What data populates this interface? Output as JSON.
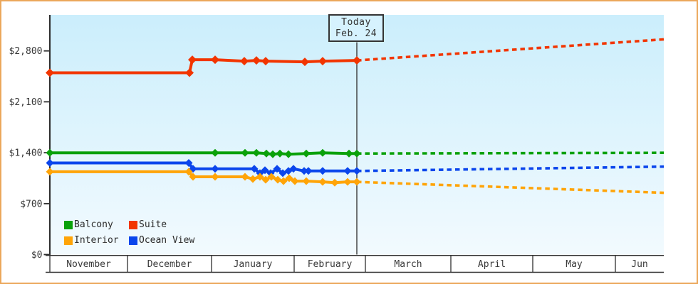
{
  "colors": {
    "frame_border": "#EBA75B",
    "plot_bg_top": "#CBEEFC",
    "plot_bg_bottom": "#F2FAFE",
    "axis": "#2E2E2E",
    "text": "#383838",
    "today_line": "#3A3A3A",
    "today_box_bg": "#D6F2FE",
    "today_box_border": "#333333"
  },
  "chart_data": {
    "type": "line",
    "description": "Cruise cabin price history with dashed price forecast after today",
    "today_label": [
      "Today",
      "Feb. 24"
    ],
    "y_axis": {
      "ticks": [
        {
          "label": "$0",
          "value": 0
        },
        {
          "label": "$700",
          "value": 700
        },
        {
          "label": "$1,400",
          "value": 1400
        },
        {
          "label": "$2,100",
          "value": 2100
        },
        {
          "label": "$2,800",
          "value": 2800
        }
      ],
      "range": [
        0,
        3290
      ],
      "grid": false
    },
    "x_axis": {
      "months": [
        "November",
        "December",
        "January",
        "February",
        "March",
        "April",
        "May",
        "Jun"
      ]
    },
    "legend_items": [
      {
        "label": "Balcony",
        "color": "#0AA10A"
      },
      {
        "label": "Suite",
        "color": "#F23500"
      },
      {
        "label": "Interior",
        "color": "#FFA408"
      },
      {
        "label": "Ocean View",
        "color": "#0B46EC"
      }
    ],
    "series": [
      {
        "name": "Suite",
        "color": "#F23500",
        "history": [
          {
            "date": "Nov 1",
            "value": 2499,
            "x": 70
          },
          {
            "date": "Dec 23",
            "value": 2499,
            "x": 266
          },
          {
            "date": "Dec 24",
            "value": 2679,
            "x": 270
          },
          {
            "date": "Jan 2",
            "value": 2679,
            "x": 302
          },
          {
            "date": "Jan 13",
            "value": 2659,
            "x": 343
          },
          {
            "date": "Jan 17",
            "value": 2669,
            "x": 360
          },
          {
            "date": "Jan 21",
            "value": 2659,
            "x": 373
          },
          {
            "date": "Feb 4",
            "value": 2649,
            "x": 428
          },
          {
            "date": "Feb 11",
            "value": 2659,
            "x": 453
          },
          {
            "date": "Feb 24",
            "value": 2669,
            "x": 501
          }
        ],
        "forecast": [
          {
            "date": "Jun 19",
            "value": 2959,
            "x": 932
          }
        ]
      },
      {
        "name": "Balcony",
        "color": "#0AA10A",
        "history": [
          {
            "date": "Nov 1",
            "value": 1399,
            "x": 70
          },
          {
            "date": "Jan 2",
            "value": 1399,
            "x": 302
          },
          {
            "date": "Jan 13",
            "value": 1399,
            "x": 344
          },
          {
            "date": "Jan 17",
            "value": 1399,
            "x": 360
          },
          {
            "date": "Jan 21",
            "value": 1389,
            "x": 374
          },
          {
            "date": "Jan 24",
            "value": 1379,
            "x": 383
          },
          {
            "date": "Jan 26",
            "value": 1389,
            "x": 393
          },
          {
            "date": "Jan 30",
            "value": 1379,
            "x": 405
          },
          {
            "date": "Feb 5",
            "value": 1389,
            "x": 430
          },
          {
            "date": "Feb 11",
            "value": 1399,
            "x": 453
          },
          {
            "date": "Feb 21",
            "value": 1389,
            "x": 490
          },
          {
            "date": "Feb 24",
            "value": 1389,
            "x": 501
          }
        ],
        "forecast": [
          {
            "date": "Jun 19",
            "value": 1399,
            "x": 932
          }
        ]
      },
      {
        "name": "Ocean View",
        "color": "#0B46EC",
        "history": [
          {
            "date": "Nov 1",
            "value": 1259,
            "x": 70
          },
          {
            "date": "Dec 23",
            "value": 1259,
            "x": 265
          },
          {
            "date": "Dec 24",
            "value": 1179,
            "x": 271
          },
          {
            "date": "Jan 2",
            "value": 1179,
            "x": 302
          },
          {
            "date": "Jan 16",
            "value": 1179,
            "x": 357
          },
          {
            "date": "Jan 19",
            "value": 1119,
            "x": 365
          },
          {
            "date": "Jan 20",
            "value": 1159,
            "x": 372
          },
          {
            "date": "Jan 23",
            "value": 1119,
            "x": 380
          },
          {
            "date": "Jan 25",
            "value": 1179,
            "x": 389
          },
          {
            "date": "Jan 27",
            "value": 1119,
            "x": 397
          },
          {
            "date": "Jan 30",
            "value": 1149,
            "x": 405
          },
          {
            "date": "Feb 1",
            "value": 1179,
            "x": 412
          },
          {
            "date": "Feb 4",
            "value": 1149,
            "x": 427
          },
          {
            "date": "Feb 6",
            "value": 1149,
            "x": 433
          },
          {
            "date": "Feb 11",
            "value": 1149,
            "x": 453
          },
          {
            "date": "Feb 20",
            "value": 1149,
            "x": 488
          },
          {
            "date": "Feb 24",
            "value": 1149,
            "x": 501
          }
        ],
        "forecast": [
          {
            "date": "Jun 19",
            "value": 1209,
            "x": 932
          }
        ]
      },
      {
        "name": "Interior",
        "color": "#FFA408",
        "history": [
          {
            "date": "Nov 1",
            "value": 1139,
            "x": 70
          },
          {
            "date": "Dec 23",
            "value": 1139,
            "x": 265
          },
          {
            "date": "Dec 24",
            "value": 1069,
            "x": 271
          },
          {
            "date": "Jan 2",
            "value": 1069,
            "x": 302
          },
          {
            "date": "Jan 13",
            "value": 1069,
            "x": 344
          },
          {
            "date": "Jan 16",
            "value": 1039,
            "x": 355
          },
          {
            "date": "Jan 19",
            "value": 1069,
            "x": 365
          },
          {
            "date": "Jan 21",
            "value": 1029,
            "x": 373
          },
          {
            "date": "Jan 23",
            "value": 1069,
            "x": 381
          },
          {
            "date": "Jan 25",
            "value": 1029,
            "x": 390
          },
          {
            "date": "Jan 27",
            "value": 1009,
            "x": 398
          },
          {
            "date": "Jan 30",
            "value": 1049,
            "x": 406
          },
          {
            "date": "Feb 1",
            "value": 1009,
            "x": 414
          },
          {
            "date": "Feb 5",
            "value": 1009,
            "x": 430
          },
          {
            "date": "Feb 11",
            "value": 999,
            "x": 453
          },
          {
            "date": "Feb 16",
            "value": 989,
            "x": 470
          },
          {
            "date": "Feb 20",
            "value": 999,
            "x": 488
          },
          {
            "date": "Feb 24",
            "value": 999,
            "x": 501
          }
        ],
        "forecast": [
          {
            "date": "Jun 19",
            "value": 849,
            "x": 932
          }
        ]
      }
    ]
  }
}
